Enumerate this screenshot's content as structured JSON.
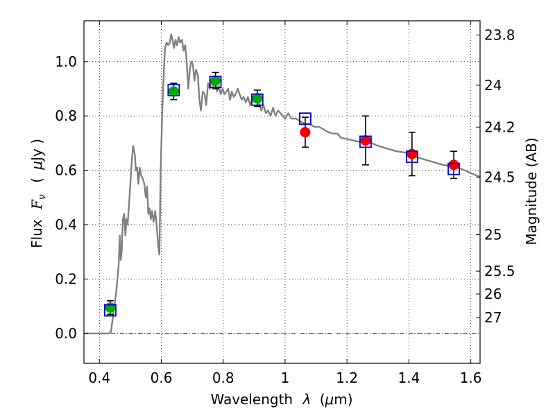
{
  "chart_data": {
    "type": "scatter",
    "xlabel_prefix": "Wavelength",
    "xlabel_math": "λ",
    "xlabel_unit_open": "(",
    "xlabel_unit_math": "μ",
    "xlabel_unit_rest": "m)",
    "ylabel_prefix": "Flux",
    "ylabel_math_main": "F",
    "ylabel_math_sub": "ν",
    "ylabel_unit_open": "(",
    "ylabel_unit_math": "μ",
    "ylabel_unit_rest": "Jy )",
    "ylabel_right": "Magnitude (AB)",
    "xlim": [
      0.35,
      1.63
    ],
    "ylim": [
      -0.11,
      1.15
    ],
    "x_ticks": [
      0.4,
      0.6,
      0.8,
      1.0,
      1.2,
      1.4,
      1.6
    ],
    "x_tick_labels": [
      "0.4",
      "0.6",
      "0.8",
      "1",
      "1.2",
      "1.4",
      "1.6"
    ],
    "y_ticks": [
      0.0,
      0.2,
      0.4,
      0.6,
      0.8,
      1.0
    ],
    "y_tick_labels": [
      "0.0",
      "0.2",
      "0.4",
      "0.6",
      "0.8",
      "1.0"
    ],
    "right_ticks": [
      {
        "label": "23.8",
        "flux": 1.098
      },
      {
        "label": "24",
        "flux": 0.913
      },
      {
        "label": "24.2",
        "flux": 0.759
      },
      {
        "label": "24.5",
        "flux": 0.575
      },
      {
        "label": "25",
        "flux": 0.363
      },
      {
        "label": "25.5",
        "flux": 0.229
      },
      {
        "label": "26",
        "flux": 0.145
      },
      {
        "label": "27",
        "flux": 0.058
      }
    ],
    "grid": true,
    "zero_line": true,
    "colors": {
      "model": "#808080",
      "box": "#0000cc",
      "green": "#00aa00",
      "red": "#ee0000",
      "error": "#000000"
    },
    "model_sed": [
      [
        0.35,
        0.0
      ],
      [
        0.43,
        0.0
      ],
      [
        0.437,
        0.005
      ],
      [
        0.445,
        0.07
      ],
      [
        0.455,
        0.16
      ],
      [
        0.462,
        0.25
      ],
      [
        0.466,
        0.36
      ],
      [
        0.469,
        0.27
      ],
      [
        0.472,
        0.3
      ],
      [
        0.476,
        0.42
      ],
      [
        0.48,
        0.44
      ],
      [
        0.484,
        0.36
      ],
      [
        0.487,
        0.42
      ],
      [
        0.491,
        0.4
      ],
      [
        0.496,
        0.48
      ],
      [
        0.5,
        0.55
      ],
      [
        0.505,
        0.64
      ],
      [
        0.509,
        0.69
      ],
      [
        0.514,
        0.66
      ],
      [
        0.518,
        0.6
      ],
      [
        0.522,
        0.61
      ],
      [
        0.526,
        0.55
      ],
      [
        0.53,
        0.61
      ],
      [
        0.535,
        0.58
      ],
      [
        0.54,
        0.57
      ],
      [
        0.545,
        0.55
      ],
      [
        0.55,
        0.5
      ],
      [
        0.554,
        0.54
      ],
      [
        0.558,
        0.44
      ],
      [
        0.562,
        0.46
      ],
      [
        0.566,
        0.42
      ],
      [
        0.57,
        0.45
      ],
      [
        0.575,
        0.41
      ],
      [
        0.58,
        0.45
      ],
      [
        0.585,
        0.4
      ],
      [
        0.59,
        0.32
      ],
      [
        0.594,
        0.29
      ],
      [
        0.598,
        0.6
      ],
      [
        0.603,
        0.82
      ],
      [
        0.608,
        0.96
      ],
      [
        0.612,
        1.05
      ],
      [
        0.617,
        1.07
      ],
      [
        0.622,
        1.06
      ],
      [
        0.627,
        1.07
      ],
      [
        0.632,
        1.1
      ],
      [
        0.636,
        1.08
      ],
      [
        0.641,
        1.05
      ],
      [
        0.646,
        1.08
      ],
      [
        0.651,
        1.06
      ],
      [
        0.656,
        1.09
      ],
      [
        0.661,
        1.07
      ],
      [
        0.667,
        1.08
      ],
      [
        0.672,
        1.04
      ],
      [
        0.677,
        1.06
      ],
      [
        0.682,
        1.0
      ],
      [
        0.687,
        0.9
      ],
      [
        0.692,
        0.97
      ],
      [
        0.697,
        1.0
      ],
      [
        0.702,
        0.99
      ],
      [
        0.707,
        0.93
      ],
      [
        0.712,
        0.97
      ],
      [
        0.718,
        0.95
      ],
      [
        0.723,
        0.86
      ],
      [
        0.728,
        0.82
      ],
      [
        0.734,
        0.89
      ],
      [
        0.74,
        0.88
      ],
      [
        0.745,
        0.84
      ],
      [
        0.751,
        0.92
      ],
      [
        0.757,
        0.9
      ],
      [
        0.762,
        0.93
      ],
      [
        0.768,
        0.91
      ],
      [
        0.774,
        0.93
      ],
      [
        0.78,
        0.89
      ],
      [
        0.786,
        0.91
      ],
      [
        0.792,
        0.88
      ],
      [
        0.798,
        0.9
      ],
      [
        0.804,
        0.88
      ],
      [
        0.81,
        0.89
      ],
      [
        0.816,
        0.9
      ],
      [
        0.822,
        0.86
      ],
      [
        0.828,
        0.89
      ],
      [
        0.834,
        0.87
      ],
      [
        0.84,
        0.88
      ],
      [
        0.847,
        0.9
      ],
      [
        0.853,
        0.88
      ],
      [
        0.86,
        0.86
      ],
      [
        0.866,
        0.87
      ],
      [
        0.873,
        0.85
      ],
      [
        0.88,
        0.87
      ],
      [
        0.887,
        0.84
      ],
      [
        0.894,
        0.86
      ],
      [
        0.901,
        0.85
      ],
      [
        0.908,
        0.87
      ],
      [
        0.915,
        0.85
      ],
      [
        0.923,
        0.82
      ],
      [
        0.93,
        0.84
      ],
      [
        0.938,
        0.81
      ],
      [
        0.945,
        0.82
      ],
      [
        0.953,
        0.8
      ],
      [
        0.961,
        0.83
      ],
      [
        0.969,
        0.8
      ],
      [
        0.977,
        0.82
      ],
      [
        0.985,
        0.81
      ],
      [
        0.993,
        0.8
      ],
      [
        1.0,
        0.79
      ],
      [
        1.01,
        0.81
      ],
      [
        1.02,
        0.79
      ],
      [
        1.035,
        0.79
      ],
      [
        1.05,
        0.78
      ],
      [
        1.065,
        0.77
      ],
      [
        1.08,
        0.77
      ],
      [
        1.095,
        0.76
      ],
      [
        1.11,
        0.76
      ],
      [
        1.125,
        0.75
      ],
      [
        1.14,
        0.74
      ],
      [
        1.155,
        0.735
      ],
      [
        1.17,
        0.735
      ],
      [
        1.18,
        0.72
      ],
      [
        1.2,
        0.715
      ],
      [
        1.22,
        0.71
      ],
      [
        1.24,
        0.705
      ],
      [
        1.26,
        0.7
      ],
      [
        1.28,
        0.7
      ],
      [
        1.3,
        0.69
      ],
      [
        1.33,
        0.68
      ],
      [
        1.36,
        0.67
      ],
      [
        1.39,
        0.665
      ],
      [
        1.42,
        0.65
      ],
      [
        1.45,
        0.64
      ],
      [
        1.48,
        0.63
      ],
      [
        1.51,
        0.62
      ],
      [
        1.54,
        0.615
      ],
      [
        1.57,
        0.605
      ],
      [
        1.6,
        0.59
      ],
      [
        1.63,
        0.575
      ]
    ],
    "photometry_boxes": [
      [
        0.435,
        0.085
      ],
      [
        0.64,
        0.895
      ],
      [
        0.775,
        0.925
      ],
      [
        0.91,
        0.86
      ],
      [
        1.065,
        0.79
      ],
      [
        1.26,
        0.705
      ],
      [
        1.41,
        0.65
      ],
      [
        1.545,
        0.605
      ]
    ],
    "green_points": [
      {
        "x": 0.435,
        "y": 0.095,
        "yerr": 0.025
      },
      {
        "x": 0.64,
        "y": 0.89,
        "yerr": 0.03
      },
      {
        "x": 0.775,
        "y": 0.93,
        "yerr": 0.03
      },
      {
        "x": 0.91,
        "y": 0.865,
        "yerr": 0.03
      }
    ],
    "red_points": [
      {
        "x": 1.065,
        "y": 0.74,
        "yerr": 0.055
      },
      {
        "x": 1.26,
        "y": 0.71,
        "yerr": 0.09
      },
      {
        "x": 1.41,
        "y": 0.66,
        "yerr": 0.08
      },
      {
        "x": 1.545,
        "y": 0.62,
        "yerr": 0.05
      }
    ]
  }
}
